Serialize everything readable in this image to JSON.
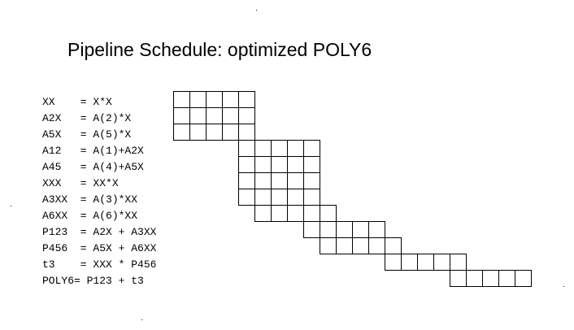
{
  "title": "Pipeline Schedule: optimized POLY6",
  "instructions": [
    {
      "text": "XX    = X*X",
      "start": 0,
      "stages": 5
    },
    {
      "text": "A2X   = A(2)*X",
      "start": 0,
      "stages": 5
    },
    {
      "text": "A5X   = A(5)*X",
      "start": 0,
      "stages": 5
    },
    {
      "text": "A12   = A(1)+A2X",
      "start": 4,
      "stages": 5
    },
    {
      "text": "A45   = A(4)+A5X",
      "start": 4,
      "stages": 5
    },
    {
      "text": "XXX   = XX*X",
      "start": 4,
      "stages": 5
    },
    {
      "text": "A3XX  = A(3)*XX",
      "start": 4,
      "stages": 5
    },
    {
      "text": "A6XX  = A(6)*XX",
      "start": 5,
      "stages": 5
    },
    {
      "text": "P123  = A2X + A3XX",
      "start": 8,
      "stages": 5
    },
    {
      "text": "P456  = A5X + A6XX",
      "start": 9,
      "stages": 5
    },
    {
      "text": "t3    = XXX * P456",
      "start": 13,
      "stages": 5
    },
    {
      "text": "POLY6= P123 + t3",
      "start": 17,
      "stages": 5
    }
  ]
}
